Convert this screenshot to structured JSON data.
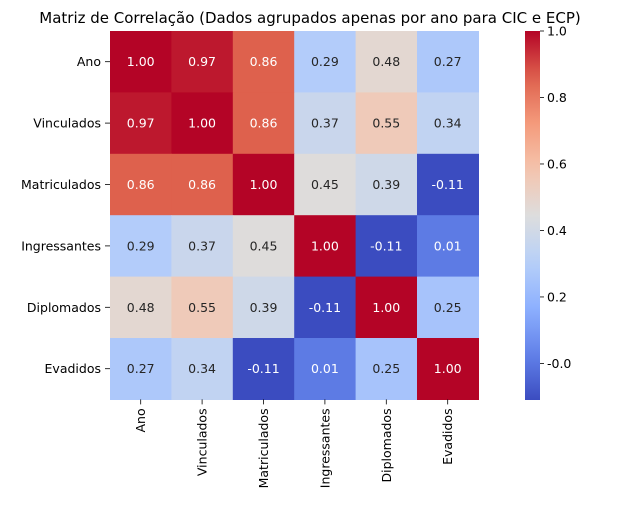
{
  "chart_data": {
    "type": "heatmap",
    "title": "Matriz de Correlação (Dados agrupados apenas por ano para CIC e ECP)",
    "rows": [
      "Ano",
      "Vinculados",
      "Matriculados",
      "Ingressantes",
      "Diplomados",
      "Evadidos"
    ],
    "columns": [
      "Ano",
      "Vinculados",
      "Matriculados",
      "Ingressantes",
      "Diplomados",
      "Evadidos"
    ],
    "values": [
      [
        1.0,
        0.97,
        0.86,
        0.29,
        0.48,
        0.27
      ],
      [
        0.97,
        1.0,
        0.86,
        0.37,
        0.55,
        0.34
      ],
      [
        0.86,
        0.86,
        1.0,
        0.45,
        0.39,
        -0.11
      ],
      [
        0.29,
        0.37,
        0.45,
        1.0,
        -0.11,
        0.01
      ],
      [
        0.48,
        0.55,
        0.39,
        -0.11,
        1.0,
        0.25
      ],
      [
        0.27,
        0.34,
        -0.11,
        0.01,
        0.25,
        1.0
      ]
    ],
    "colormap": "coolwarm",
    "vmin": -0.11,
    "vmax": 1.0,
    "colorbar_ticks": [
      "-0.0",
      "0.2",
      "0.4",
      "0.6",
      "0.8",
      "1.0"
    ],
    "colors": {
      "low": "#3b4cc0",
      "mid": "#dddddd",
      "high": "#b40426"
    }
  }
}
